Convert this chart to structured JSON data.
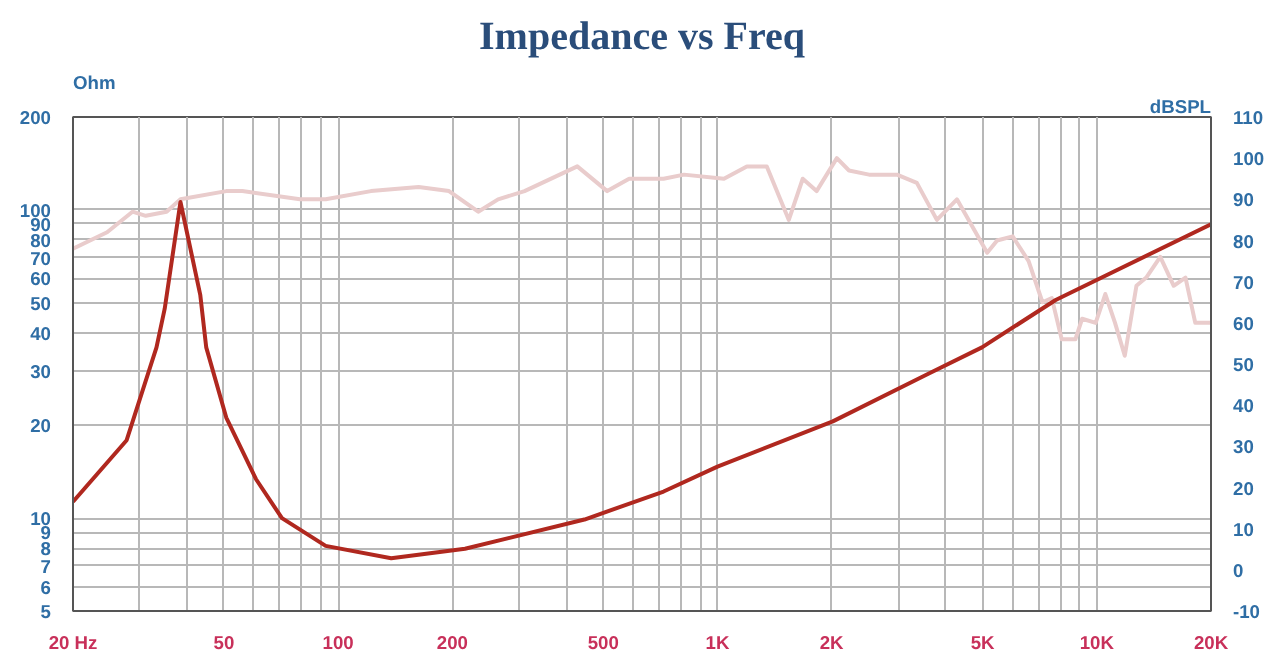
{
  "chart_data": {
    "type": "line",
    "title": "Impedance vs Freq",
    "ylabel": "Ohm",
    "y2label": "dBSPL",
    "log": "xy",
    "xlim": [
      20,
      20000
    ],
    "xticks": [
      {
        "value": 20,
        "label": "20 Hz"
      },
      {
        "value": 30,
        "label": null
      },
      {
        "value": 40,
        "label": null
      },
      50,
      {
        "value": 60,
        "label": null
      },
      {
        "value": 70,
        "label": null
      },
      {
        "value": 80,
        "label": null
      },
      {
        "value": 90,
        "label": null
      },
      100,
      200,
      {
        "value": 300,
        "label": null
      },
      {
        "value": 400,
        "label": null
      },
      500,
      {
        "value": 600,
        "label": null
      },
      {
        "value": 700,
        "label": null
      },
      {
        "value": 800,
        "label": null
      },
      {
        "value": 900,
        "label": null
      },
      {
        "value": 1000,
        "label": "1K"
      },
      {
        "value": 2000,
        "label": "2K"
      },
      {
        "value": 3000,
        "label": null
      },
      {
        "value": 4000,
        "label": null
      },
      {
        "value": 5000,
        "label": "5K"
      },
      {
        "value": 6000,
        "label": null
      },
      {
        "value": 7000,
        "label": null
      },
      {
        "value": 8000,
        "label": null
      },
      {
        "value": 9000,
        "label": null
      },
      {
        "value": 10000,
        "label": "10K"
      },
      {
        "value": 20000,
        "label": "20K"
      }
    ],
    "ylim": [
      5,
      200
    ],
    "yticks": [
      5,
      6,
      7,
      8,
      9,
      10,
      20,
      30,
      40,
      50,
      60,
      70,
      80,
      90,
      100,
      200
    ],
    "y2lim": [
      -10,
      110
    ],
    "y2ticks": [
      -10,
      0,
      10,
      20,
      30,
      40,
      50,
      60,
      70,
      80,
      90,
      100,
      110
    ],
    "grid": true,
    "legend": false,
    "marker": "none",
    "line_style": "solid",
    "series": [
      {
        "color": "#e9cccc",
        "axis": "y2",
        "x": [
          20,
          24.6,
          28.7,
          31.1,
          35.3,
          38.4,
          50.7,
          55.9,
          79.3,
          92.7,
          122,
          163,
          196,
          234,
          264,
          310,
          427,
          512,
          585,
          721,
          816,
          1040,
          1195,
          1349,
          1542,
          1678,
          1825,
          2064,
          2222,
          2509,
          2972,
          3354,
          3788,
          4278,
          5140,
          5460,
          6000,
          6610,
          7190,
          7610,
          8080,
          8780,
          9150,
          9930,
          10530,
          11170,
          11850,
          12720,
          13500,
          14700,
          15950,
          17130,
          18180,
          20000
        ],
        "values": [
          78,
          82,
          87,
          86,
          87,
          90,
          92,
          92,
          90,
          90,
          92,
          93,
          92,
          87,
          90,
          92,
          98,
          92,
          95,
          95,
          96,
          95,
          98,
          98,
          85,
          95,
          92,
          100,
          97,
          96,
          96,
          94,
          85,
          90,
          77,
          80,
          81,
          75,
          65,
          66,
          56,
          56,
          61,
          60,
          67,
          60,
          52,
          69,
          71,
          76,
          69,
          71,
          60,
          60
        ]
      },
      {
        "color": "#b0281f",
        "x": [
          20,
          27.7,
          33.2,
          34.9,
          38.4,
          43.3,
          44.9,
          50.7,
          60.7,
          71.1,
          92.7,
          138,
          216,
          446,
          721,
          1000,
          2014,
          3597,
          4980,
          7790,
          20000
        ],
        "values": [
          11.3,
          17.9,
          35.8,
          47.8,
          106,
          53,
          35.8,
          21.2,
          13.4,
          10,
          8.13,
          7.41,
          7.96,
          9.9,
          12.2,
          14.7,
          20.6,
          29.4,
          35.8,
          51,
          89.8
        ]
      }
    ]
  }
}
